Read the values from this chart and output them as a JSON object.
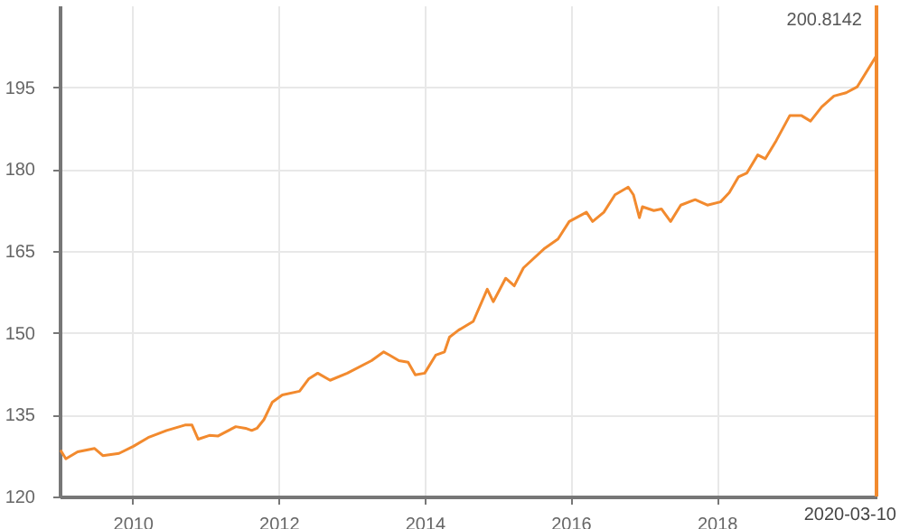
{
  "chart_data": {
    "type": "line",
    "x": [
      "2009-01-05",
      "2009-02-01",
      "2009-04-01",
      "2009-06-25",
      "2009-08-05",
      "2009-10-25",
      "2010-01-05",
      "2010-03-20",
      "2010-06-20",
      "2010-09-20",
      "2010-10-25",
      "2010-11-25",
      "2011-01-20",
      "2011-03-05",
      "2011-06-01",
      "2011-07-20",
      "2011-08-20",
      "2011-09-15",
      "2011-10-20",
      "2011-12-01",
      "2012-01-20",
      "2012-04-15",
      "2012-06-01",
      "2012-07-15",
      "2012-09-15",
      "2012-12-10",
      "2013-04-10",
      "2013-06-10",
      "2013-07-10",
      "2013-08-25",
      "2013-10-10",
      "2013-11-15",
      "2014-01-01",
      "2014-02-25",
      "2014-04-10",
      "2014-05-05",
      "2014-06-20",
      "2014-09-01",
      "2014-11-10",
      "2014-12-10",
      "2015-02-10",
      "2015-03-25",
      "2015-05-10",
      "2015-08-25",
      "2015-10-30",
      "2015-12-25",
      "2016-03-20",
      "2016-04-20",
      "2016-06-15",
      "2016-08-10",
      "2016-10-15",
      "2016-11-10",
      "2016-12-10",
      "2016-12-25",
      "2017-02-20",
      "2017-03-30",
      "2017-05-15",
      "2017-07-05",
      "2017-09-15",
      "2017-11-15",
      "2018-01-20",
      "2018-03-05",
      "2018-04-20",
      "2018-06-01",
      "2018-07-25",
      "2018-09-01",
      "2018-10-25",
      "2019-01-01",
      "2019-03-01",
      "2019-04-15",
      "2019-06-10",
      "2019-08-10",
      "2019-10-10",
      "2019-12-05",
      "2020-03-10"
    ],
    "series": [
      {
        "color": "#f28a2e",
        "values": [
          128.5,
          126.9,
          128.2,
          128.8,
          127.5,
          127.9,
          129.2,
          130.8,
          132.1,
          133.1,
          133.1,
          130.5,
          131.2,
          131.1,
          132.8,
          132.5,
          132.1,
          132.5,
          134.1,
          137.3,
          138.6,
          139.3,
          141.6,
          142.6,
          141.3,
          142.6,
          144.9,
          146.5,
          145.9,
          144.9,
          144.6,
          142.3,
          142.6,
          145.9,
          146.5,
          149.2,
          150.5,
          152.1,
          158.0,
          155.7,
          160.0,
          158.6,
          161.9,
          165.5,
          167.2,
          170.4,
          172.1,
          170.4,
          172.1,
          175.3,
          176.7,
          175.3,
          171.1,
          173.1,
          172.4,
          172.7,
          170.4,
          173.4,
          174.4,
          173.4,
          174.0,
          175.7,
          178.6,
          179.3,
          182.6,
          181.9,
          185.2,
          189.8,
          189.8,
          188.8,
          191.4,
          193.4,
          194.0,
          195.1,
          200.8142
        ]
      }
    ],
    "xlim": [
      "2009-01-01",
      "2020-03-10"
    ],
    "xticks": [
      "2010",
      "2012",
      "2014",
      "2016",
      "2018"
    ],
    "ylim": [
      120,
      210
    ],
    "yticks": [
      120,
      135,
      150,
      165,
      180,
      195
    ],
    "grid": true,
    "ref_lines": [
      {
        "axis": "x",
        "value": "2020-03-10",
        "color": "#f28a2e"
      }
    ],
    "annotations": [
      {
        "text": "200.8142",
        "x": "2020-03-10",
        "y": 200.8142
      },
      "2020-03-10"
    ]
  }
}
